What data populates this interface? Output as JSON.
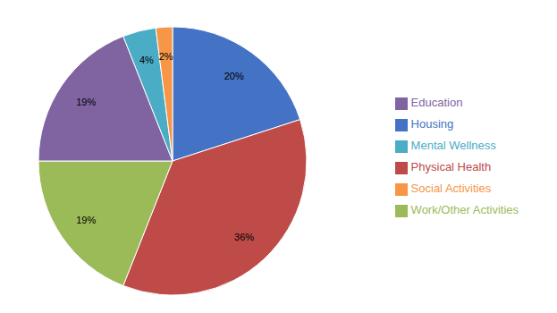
{
  "chart_data": {
    "type": "pie",
    "categories": [
      "Housing",
      "Physical Health",
      "Work/Other Activities",
      "Education",
      "Mental Wellness",
      "Social Activities"
    ],
    "values": [
      20,
      36,
      19,
      19,
      4,
      2
    ],
    "value_labels": [
      "20%",
      "36%",
      "19%",
      "19%",
      "4%",
      "2%"
    ],
    "colors": [
      "#4472C4",
      "#BE4B48",
      "#9BBB59",
      "#8064A2",
      "#4BACC6",
      "#F79646"
    ],
    "data_labels": true,
    "legend": "right"
  }
}
